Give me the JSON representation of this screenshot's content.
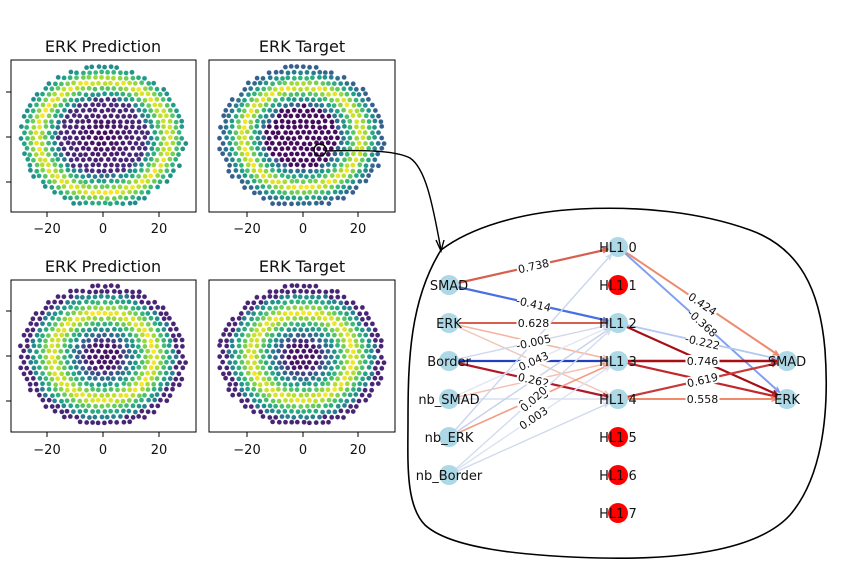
{
  "panels": [
    {
      "title": "ERK Prediction",
      "pattern": "prediction_ring",
      "x_ticks": [
        "−20",
        "0",
        "20"
      ]
    },
    {
      "title": "ERK Target",
      "pattern": "target_ring",
      "x_ticks": [
        "−20",
        "0",
        "20"
      ]
    },
    {
      "title": "ERK Prediction",
      "pattern": "wide_ring",
      "x_ticks": [
        "−20",
        "0",
        "20"
      ]
    },
    {
      "title": "ERK Target",
      "pattern": "wide_ring",
      "x_ticks": [
        "−20",
        "0",
        "20"
      ]
    }
  ],
  "network": {
    "inputs": [
      "SMAD",
      "ERK",
      "Border",
      "nb_SMAD",
      "nb_ERK",
      "nb_Border"
    ],
    "hidden": [
      {
        "label": "HL1 0",
        "active": true
      },
      {
        "label": "HL1 1",
        "active": false
      },
      {
        "label": "HL1 2",
        "active": true
      },
      {
        "label": "HL1 3",
        "active": true
      },
      {
        "label": "HL1 4",
        "active": true
      },
      {
        "label": "HL1 5",
        "active": false
      },
      {
        "label": "HL1 6",
        "active": false
      },
      {
        "label": "HL1 7",
        "active": false
      }
    ],
    "outputs": [
      "SMAD",
      "ERK"
    ],
    "edges": [
      {
        "from": "in0",
        "to": "h0",
        "color": "#d6604d",
        "label": "0.738",
        "width": 2.2
      },
      {
        "from": "in0",
        "to": "h2",
        "color": "#4a6fe3",
        "label": "-0.414",
        "width": 2.2
      },
      {
        "from": "in1",
        "to": "h2",
        "color": "#d6604d",
        "label": "0.628",
        "width": 2.0
      },
      {
        "from": "in1",
        "to": "h3",
        "color": "#f4b6a0",
        "label": "",
        "width": 1.6
      },
      {
        "from": "in1",
        "to": "h4",
        "color": "#f0c8b8",
        "label": "",
        "width": 1.5
      },
      {
        "from": "in2",
        "to": "h3",
        "color": "#2040c0",
        "label": "",
        "width": 2.2
      },
      {
        "from": "in2",
        "to": "h4",
        "color": "#b2182b",
        "label": "0.262",
        "width": 2.2
      },
      {
        "from": "in2",
        "to": "h2",
        "color": "#d0d8ec",
        "label": "-0.005",
        "width": 1.4
      },
      {
        "from": "in3",
        "to": "h2",
        "color": "#e0e6f2",
        "label": "0.043",
        "width": 1.4
      },
      {
        "from": "in3",
        "to": "h3",
        "color": "#f7c0b0",
        "label": "",
        "width": 1.5
      },
      {
        "from": "in3",
        "to": "h4",
        "color": "#d8dff0",
        "label": "",
        "width": 1.4
      },
      {
        "from": "in4",
        "to": "h3",
        "color": "#f29c84",
        "label": "0.003",
        "width": 1.6
      },
      {
        "from": "in4",
        "to": "h0",
        "color": "#c9d6ee",
        "label": "",
        "width": 1.4
      },
      {
        "from": "in4",
        "to": "h2",
        "color": "#c7d2ea",
        "label": "",
        "width": 1.4
      },
      {
        "from": "in5",
        "to": "h2",
        "color": "#d2dcf0",
        "label": "0.020",
        "width": 1.4
      },
      {
        "from": "in5",
        "to": "h3",
        "color": "#dce3f2",
        "label": "0.003",
        "width": 1.4
      },
      {
        "from": "in5",
        "to": "h4",
        "color": "#d0d9ee",
        "label": "",
        "width": 1.4
      },
      {
        "from": "h0",
        "to": "o0",
        "color": "#ec8a6c",
        "label": "0.424",
        "width": 2.0
      },
      {
        "from": "h0",
        "to": "o1",
        "color": "#7f9ff0",
        "label": "-0.368",
        "width": 2.0
      },
      {
        "from": "h2",
        "to": "o0",
        "color": "#b3c8f0",
        "label": "-0.222",
        "width": 1.8
      },
      {
        "from": "h2",
        "to": "o1",
        "color": "#a50f15",
        "label": "",
        "width": 2.2
      },
      {
        "from": "h3",
        "to": "o0",
        "color": "#a50f15",
        "label": "0.746",
        "width": 2.4
      },
      {
        "from": "h3",
        "to": "o1",
        "color": "#c0282c",
        "label": "",
        "width": 2.2
      },
      {
        "from": "h4",
        "to": "o0",
        "color": "#c83a3a",
        "label": "0.619",
        "width": 2.2
      },
      {
        "from": "h4",
        "to": "o1",
        "color": "#ef8a6a",
        "label": "0.558",
        "width": 2.0
      }
    ]
  },
  "colors": {
    "node_active": "#add8e6",
    "node_inactive": "#ff0000",
    "viridis_dark": "#440154",
    "viridis_mid": "#21918c",
    "viridis_bright": "#fde725"
  }
}
